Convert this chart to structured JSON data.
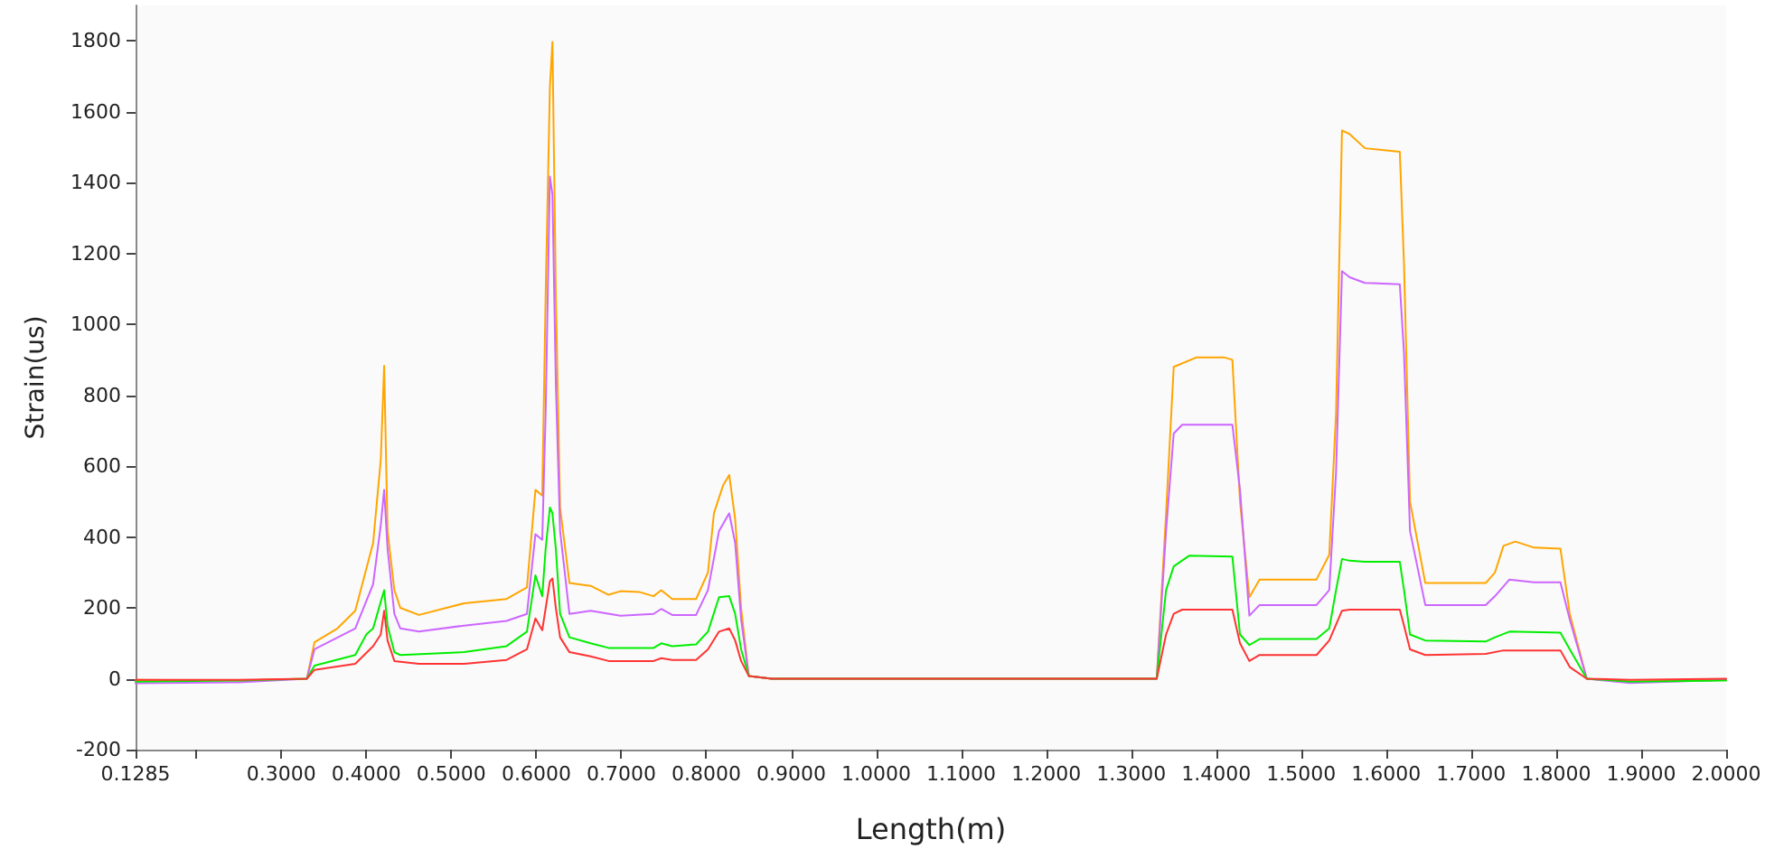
{
  "chart_data": {
    "type": "line",
    "xlabel": "Length(m)",
    "ylabel": "Strain(us)",
    "xlim": [
      0.1285,
      2.0
    ],
    "ylim": [
      -200,
      1900
    ],
    "xticks": [
      {
        "value": 0.1285,
        "label": "0.1285"
      },
      {
        "value": 0.2,
        "label": null
      },
      {
        "value": 0.3,
        "label": "0.3000"
      },
      {
        "value": 0.4,
        "label": "0.4000"
      },
      {
        "value": 0.5,
        "label": "0.5000"
      },
      {
        "value": 0.6,
        "label": "0.6000"
      },
      {
        "value": 0.7,
        "label": "0.7000"
      },
      {
        "value": 0.8,
        "label": "0.8000"
      },
      {
        "value": 0.9,
        "label": "0.9000"
      },
      {
        "value": 1.0,
        "label": "1.0000"
      },
      {
        "value": 1.1,
        "label": "1.1000"
      },
      {
        "value": 1.2,
        "label": "1.2000"
      },
      {
        "value": 1.3,
        "label": "1.3000"
      },
      {
        "value": 1.4,
        "label": "1.4000"
      },
      {
        "value": 1.5,
        "label": "1.5000"
      },
      {
        "value": 1.6,
        "label": "1.6000"
      },
      {
        "value": 1.7,
        "label": "1.7000"
      },
      {
        "value": 1.8,
        "label": "1.8000"
      },
      {
        "value": 1.9,
        "label": "1.9000"
      },
      {
        "value": 2.0,
        "label": "2.0000"
      }
    ],
    "yticks": [
      -200,
      0,
      200,
      400,
      600,
      800,
      1000,
      1200,
      1400,
      1600,
      1800
    ],
    "grid": false,
    "marker": "none",
    "line_style": "solid",
    "series": [
      {
        "color": "#ffa500",
        "x": [
          0.1285,
          0.25,
          0.33,
          0.339,
          0.366,
          0.387,
          0.408,
          0.417,
          0.421,
          0.425,
          0.433,
          0.44,
          0.462,
          0.515,
          0.565,
          0.589,
          0.599,
          0.607,
          0.611,
          0.616,
          0.619,
          0.623,
          0.628,
          0.639,
          0.664,
          0.685,
          0.699,
          0.721,
          0.738,
          0.747,
          0.76,
          0.788,
          0.802,
          0.809,
          0.82,
          0.827,
          0.834,
          0.841,
          0.85,
          0.877,
          1.0,
          1.2,
          1.33,
          1.341,
          1.35,
          1.377,
          1.409,
          1.419,
          1.428,
          1.439,
          1.451,
          1.518,
          1.533,
          1.541,
          1.548,
          1.557,
          1.575,
          1.616,
          1.621,
          1.628,
          1.646,
          1.717,
          1.728,
          1.738,
          1.752,
          1.774,
          1.805,
          1.816,
          1.836,
          1.887,
          2.0
        ],
        "values": [
          -3,
          -5,
          0,
          103,
          142,
          192,
          383,
          617,
          883,
          417,
          250,
          200,
          180,
          213,
          225,
          258,
          533,
          517,
          1083,
          1667,
          1797,
          1083,
          483,
          270,
          262,
          237,
          247,
          245,
          233,
          250,
          225,
          225,
          300,
          467,
          547,
          575,
          450,
          200,
          8,
          0,
          0,
          0,
          0,
          467,
          880,
          907,
          907,
          900,
          500,
          230,
          280,
          280,
          350,
          750,
          1547,
          1537,
          1497,
          1487,
          1167,
          500,
          270,
          270,
          300,
          375,
          387,
          370,
          367,
          183,
          0,
          -8,
          -3
        ]
      },
      {
        "color": "#cc66ff",
        "x": [
          0.1285,
          0.25,
          0.33,
          0.339,
          0.387,
          0.408,
          0.417,
          0.421,
          0.425,
          0.433,
          0.44,
          0.462,
          0.515,
          0.565,
          0.589,
          0.599,
          0.607,
          0.611,
          0.616,
          0.619,
          0.623,
          0.628,
          0.639,
          0.664,
          0.699,
          0.738,
          0.747,
          0.76,
          0.788,
          0.802,
          0.815,
          0.827,
          0.834,
          0.841,
          0.85,
          0.877,
          1.0,
          1.2,
          1.33,
          1.341,
          1.35,
          1.36,
          1.419,
          1.428,
          1.439,
          1.451,
          1.518,
          1.533,
          1.541,
          1.548,
          1.557,
          1.575,
          1.616,
          1.621,
          1.628,
          1.646,
          1.717,
          1.728,
          1.745,
          1.774,
          1.805,
          1.816,
          1.836,
          1.887,
          2.0
        ],
        "values": [
          -13,
          -10,
          0,
          83,
          142,
          267,
          433,
          533,
          367,
          183,
          142,
          133,
          150,
          163,
          183,
          408,
          392,
          750,
          1417,
          1367,
          833,
          417,
          183,
          192,
          178,
          183,
          197,
          180,
          180,
          250,
          417,
          467,
          383,
          167,
          8,
          0,
          0,
          0,
          0,
          417,
          692,
          717,
          717,
          533,
          178,
          208,
          208,
          250,
          583,
          1150,
          1133,
          1117,
          1113,
          917,
          417,
          208,
          208,
          233,
          280,
          272,
          272,
          167,
          0,
          -12,
          -3
        ]
      },
      {
        "color": "#00ee00",
        "x": [
          0.1285,
          0.25,
          0.33,
          0.339,
          0.387,
          0.4,
          0.408,
          0.417,
          0.421,
          0.425,
          0.433,
          0.44,
          0.515,
          0.565,
          0.589,
          0.599,
          0.607,
          0.611,
          0.616,
          0.619,
          0.623,
          0.628,
          0.639,
          0.664,
          0.685,
          0.738,
          0.747,
          0.76,
          0.788,
          0.802,
          0.815,
          0.827,
          0.834,
          0.841,
          0.85,
          0.877,
          1.0,
          1.2,
          1.33,
          1.341,
          1.35,
          1.368,
          1.419,
          1.428,
          1.439,
          1.451,
          1.518,
          1.533,
          1.541,
          1.548,
          1.557,
          1.575,
          1.616,
          1.621,
          1.628,
          1.646,
          1.717,
          1.728,
          1.745,
          1.805,
          1.816,
          1.836,
          1.887,
          2.0
        ],
        "values": [
          -8,
          -5,
          0,
          37,
          67,
          125,
          142,
          217,
          250,
          150,
          75,
          67,
          75,
          92,
          133,
          292,
          233,
          367,
          483,
          467,
          367,
          183,
          117,
          100,
          87,
          87,
          100,
          92,
          97,
          133,
          230,
          233,
          183,
          83,
          8,
          0,
          0,
          0,
          0,
          250,
          317,
          347,
          345,
          125,
          95,
          112,
          112,
          142,
          250,
          338,
          333,
          330,
          330,
          250,
          125,
          108,
          105,
          117,
          133,
          130,
          83,
          0,
          -8,
          -5
        ]
      },
      {
        "color": "#ff3333",
        "x": [
          0.1285,
          0.25,
          0.33,
          0.339,
          0.387,
          0.408,
          0.417,
          0.421,
          0.425,
          0.433,
          0.462,
          0.515,
          0.565,
          0.589,
          0.599,
          0.607,
          0.616,
          0.619,
          0.623,
          0.628,
          0.639,
          0.664,
          0.685,
          0.738,
          0.747,
          0.76,
          0.788,
          0.802,
          0.815,
          0.827,
          0.834,
          0.841,
          0.85,
          0.877,
          1.0,
          1.2,
          1.33,
          1.341,
          1.35,
          1.36,
          1.419,
          1.428,
          1.439,
          1.451,
          1.518,
          1.533,
          1.548,
          1.557,
          1.616,
          1.621,
          1.628,
          1.646,
          1.717,
          1.738,
          1.805,
          1.816,
          1.836,
          1.887,
          2.0
        ],
        "values": [
          -3,
          -3,
          0,
          25,
          42,
          92,
          125,
          192,
          108,
          50,
          42,
          42,
          53,
          83,
          170,
          137,
          275,
          283,
          200,
          117,
          75,
          63,
          50,
          50,
          58,
          53,
          53,
          83,
          133,
          142,
          108,
          50,
          8,
          0,
          0,
          0,
          0,
          125,
          183,
          195,
          195,
          100,
          50,
          67,
          67,
          108,
          192,
          195,
          195,
          150,
          83,
          67,
          70,
          80,
          80,
          33,
          0,
          -3,
          0
        ]
      }
    ]
  }
}
